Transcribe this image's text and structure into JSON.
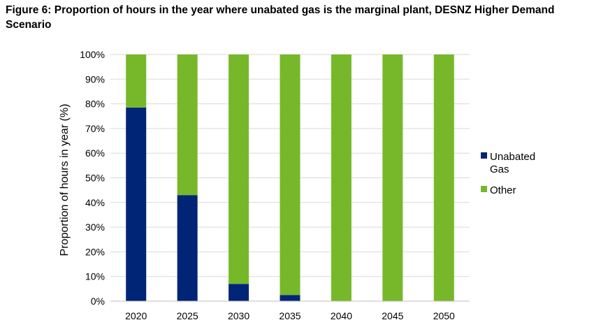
{
  "chart_data": {
    "type": "bar",
    "stacked": true,
    "title": "Figure 6: Proportion of hours in the year where unabated gas is the marginal plant, DESNZ Higher Demand Scenario",
    "ylabel": "Proportion of hours in year (%)",
    "xlabel": "",
    "categories": [
      "2020",
      "2025",
      "2030",
      "2035",
      "2040",
      "2045",
      "2050"
    ],
    "y_ticks": [
      "0%",
      "10%",
      "20%",
      "30%",
      "40%",
      "50%",
      "60%",
      "70%",
      "80%",
      "90%",
      "100%"
    ],
    "ylim": [
      0,
      100
    ],
    "grid": true,
    "legend_position": "right",
    "series": [
      {
        "name": "Unabated Gas",
        "legend_lines": [
          "Unabated",
          "Gas"
        ],
        "color": "#002576",
        "values": [
          78.5,
          43,
          7,
          2.5,
          0,
          0,
          0
        ]
      },
      {
        "name": "Other",
        "legend_lines": [
          "Other"
        ],
        "color": "#76b82a",
        "values": [
          21.5,
          57,
          93,
          97.5,
          100,
          100,
          100
        ]
      }
    ]
  }
}
